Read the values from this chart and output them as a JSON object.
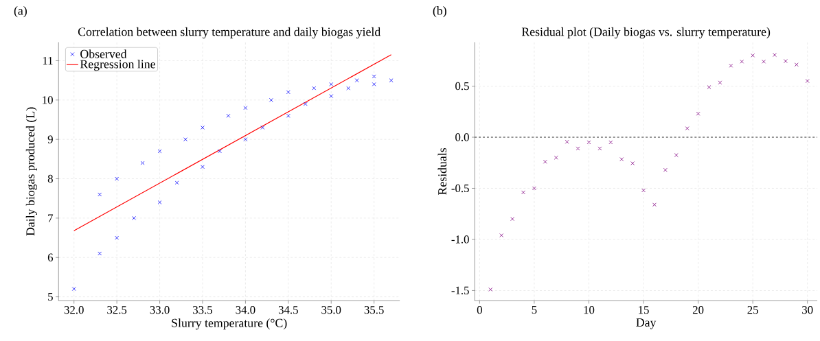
{
  "chart_data": [
    {
      "type": "scatter",
      "title": "Correlation between slurry temperature and daily biogas yield",
      "xlabel": "Slurry temperature (°C)",
      "ylabel": "Daily biogas produced (L)",
      "annotations": [
        "(a)"
      ],
      "x": [
        32.0,
        32.3,
        32.3,
        32.5,
        32.5,
        32.7,
        32.8,
        33.0,
        33.0,
        33.2,
        33.3,
        33.5,
        33.5,
        33.7,
        33.8,
        34.0,
        34.0,
        34.2,
        34.3,
        34.5,
        34.5,
        34.7,
        34.8,
        35.0,
        35.0,
        35.2,
        35.3,
        35.5,
        35.5,
        35.7
      ],
      "series": [
        {
          "name": "Observed",
          "type": "scatter",
          "color": "#0000ff",
          "marker": "cross",
          "values": [
            5.2,
            7.6,
            6.1,
            8.0,
            6.5,
            7.0,
            8.4,
            8.7,
            7.4,
            7.9,
            9.0,
            9.3,
            8.3,
            8.7,
            9.6,
            9.8,
            9.0,
            9.3,
            10.0,
            10.2,
            9.6,
            9.9,
            10.3,
            10.4,
            10.1,
            10.3,
            10.5,
            10.6,
            10.4,
            10.5
          ]
        },
        {
          "name": "Regression line",
          "type": "line",
          "color": "#ff0000",
          "marker": "none",
          "line_style": "solid",
          "x": [
            32.0,
            35.7
          ],
          "values": [
            6.68,
            11.15
          ]
        }
      ],
      "xlim": [
        31.82,
        35.8
      ],
      "ylim": [
        4.9,
        11.47
      ],
      "xticks": [
        {
          "value": 32.0,
          "label": "32.0"
        },
        {
          "value": 32.5,
          "label": "32.5"
        },
        {
          "value": 33.0,
          "label": "33.0"
        },
        {
          "value": 33.5,
          "label": "33.5"
        },
        {
          "value": 34.0,
          "label": "34.0"
        },
        {
          "value": 34.5,
          "label": "34.5"
        },
        {
          "value": 35.0,
          "label": "35.0"
        },
        {
          "value": 35.5,
          "label": "35.5"
        }
      ],
      "yticks": [
        5,
        6,
        7,
        8,
        9,
        10,
        11
      ],
      "grid": true,
      "legend": "top left"
    },
    {
      "type": "scatter",
      "title": "Residual plot (Daily biogas vs. slurry temperature)",
      "xlabel": "Day",
      "ylabel": "Residuals",
      "annotations": [
        "(b)"
      ],
      "x": [
        1,
        2,
        3,
        4,
        5,
        6,
        7,
        8,
        9,
        10,
        11,
        12,
        13,
        14,
        15,
        16,
        17,
        18,
        19,
        20,
        21,
        22,
        23,
        24,
        25,
        26,
        27,
        28,
        29,
        30
      ],
      "series": [
        {
          "color": "#800080",
          "marker": "cross",
          "values": [
            -1.49,
            -0.96,
            -0.8,
            -0.54,
            -0.5,
            -0.24,
            -0.2,
            -0.045,
            -0.11,
            -0.05,
            -0.11,
            -0.05,
            -0.215,
            -0.255,
            -0.52,
            -0.66,
            -0.32,
            -0.175,
            0.087,
            0.23,
            0.49,
            0.535,
            0.7,
            0.74,
            0.8,
            0.74,
            0.805,
            0.745,
            0.71,
            0.55
          ]
        }
      ],
      "xlim": [
        -0.45,
        30.9
      ],
      "ylim": [
        -1.6,
        0.93
      ],
      "xticks": [
        0,
        5,
        10,
        15,
        20,
        25,
        30
      ],
      "yticks": [
        {
          "value": -1.5,
          "label": "-1.5"
        },
        {
          "value": -1.0,
          "label": "-1.0"
        },
        {
          "value": -0.5,
          "label": "-0.5"
        },
        {
          "value": 0.0,
          "label": "0.0"
        },
        {
          "value": 0.5,
          "label": "0.5"
        }
      ],
      "ref_lines": [
        {
          "axis": "y",
          "value": 0,
          "color": "#000000",
          "line_style": "dashed"
        }
      ],
      "grid": true,
      "legend": false
    }
  ]
}
